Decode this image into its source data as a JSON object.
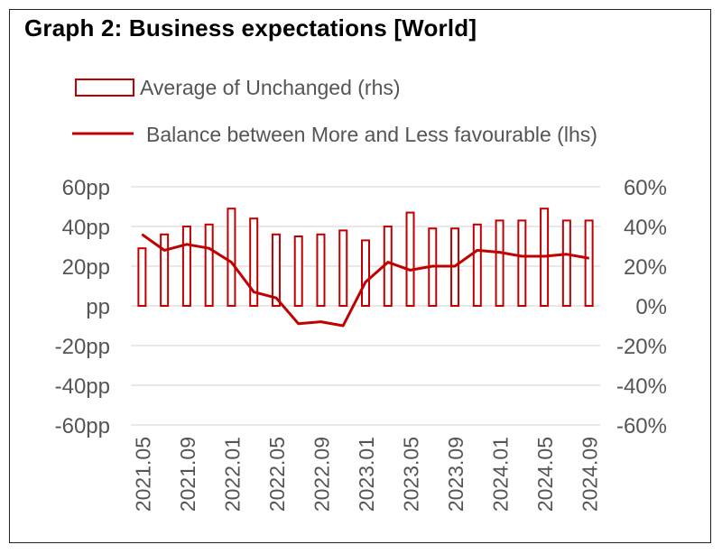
{
  "title": "Graph 2: Business expectations [World]",
  "colors": {
    "series": "#c00000",
    "grid": "#d9d9d9",
    "text": "#595959"
  },
  "chart_data": {
    "type": "bar",
    "title": "Graph 2: Business expectations [World]",
    "categories": [
      "2021.05",
      "2021.07",
      "2021.09",
      "2021.11",
      "2022.01",
      "2022.03",
      "2022.05",
      "2022.07",
      "2022.09",
      "2022.11",
      "2023.01",
      "2023.03",
      "2023.05",
      "2023.07",
      "2023.09",
      "2023.11",
      "2024.01",
      "2024.03",
      "2024.05",
      "2024.07",
      "2024.09"
    ],
    "x_tick_labels": [
      "2021.05",
      "2021.09",
      "2022.01",
      "2022.05",
      "2022.09",
      "2023.01",
      "2023.05",
      "2023.09",
      "2024.01",
      "2024.05",
      "2024.09"
    ],
    "y_left": {
      "ticks": [
        "60pp",
        "40pp",
        "20pp",
        "pp",
        "-20pp",
        "-40pp",
        "-60pp"
      ],
      "ylim": [
        -60,
        60
      ]
    },
    "y_right": {
      "ticks": [
        "60%",
        "40%",
        "20%",
        "0%",
        "-20%",
        "-40%",
        "-60%"
      ],
      "ylim": [
        -60,
        60
      ]
    },
    "series": [
      {
        "name": "Average of Unchanged (rhs)",
        "type": "bar",
        "axis": "right",
        "values": [
          29,
          36,
          40,
          41,
          49,
          44,
          36,
          35,
          36,
          38,
          33,
          40,
          47,
          39,
          39,
          41,
          43,
          43,
          49,
          43,
          43
        ]
      },
      {
        "name": "Balance between More and Less favourable (lhs)",
        "type": "line",
        "axis": "left",
        "values": [
          36,
          28,
          31,
          29,
          22,
          7,
          4,
          -9,
          -8,
          -10,
          12,
          22,
          18,
          20,
          20,
          28,
          27,
          25,
          25,
          26,
          24
        ]
      }
    ],
    "legend_position": "top-left",
    "grid": true
  }
}
